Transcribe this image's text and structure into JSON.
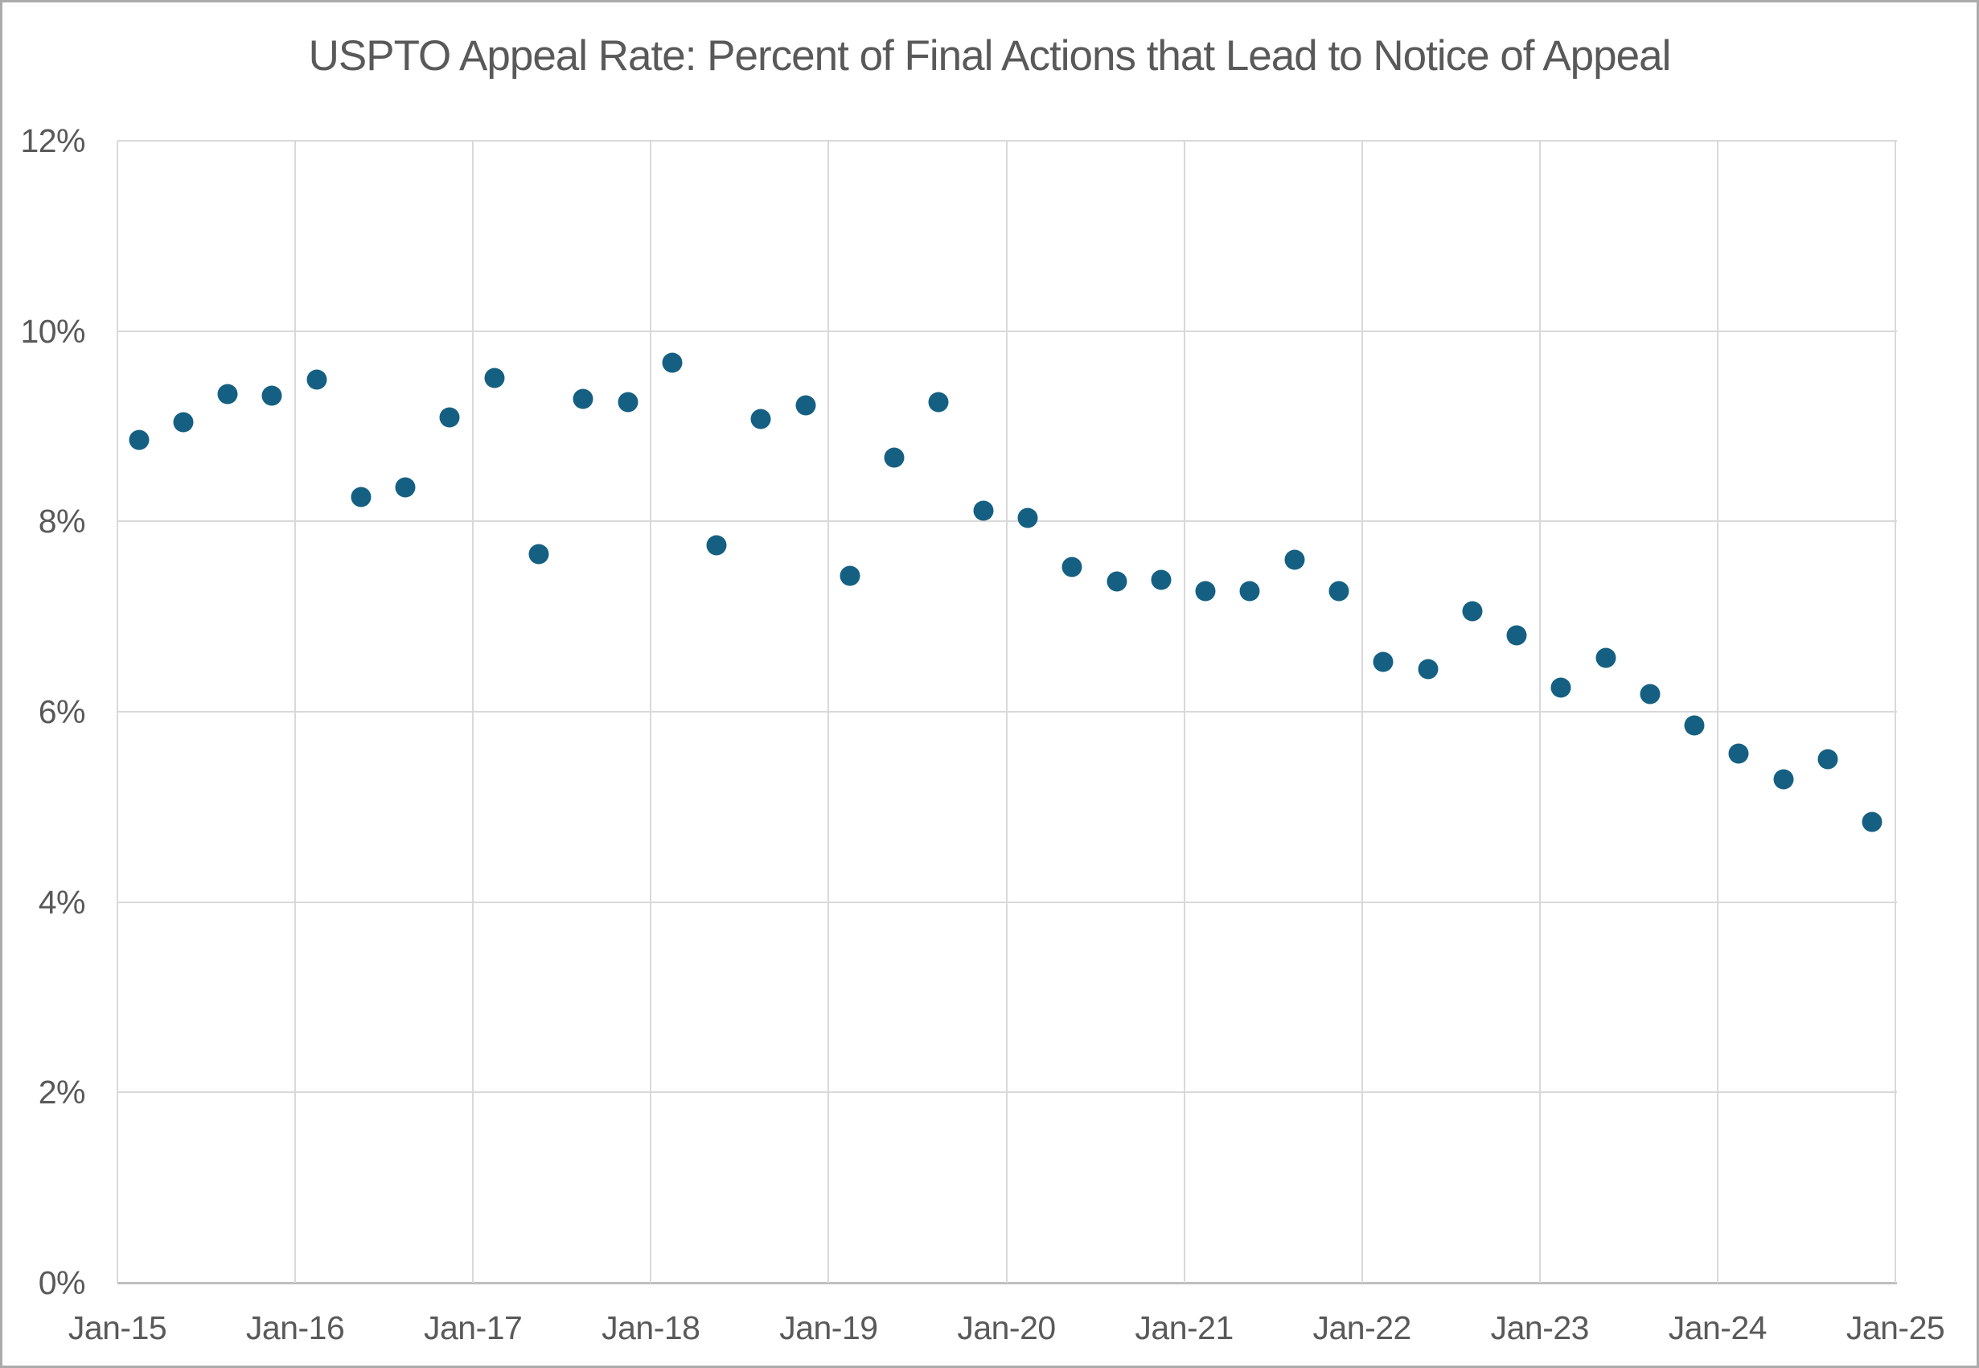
{
  "page": {
    "background_color": "#FFFFFF",
    "border_color": "#ABABAB"
  },
  "chart_data": {
    "type": "scatter",
    "title": "USPTO Appeal Rate: Percent of Final Actions that Lead to Notice of Appeal",
    "title_color": "#595959",
    "tick_label_color": "#595959",
    "marker_color": "#156082",
    "gridline_color": "#D9D9D9",
    "axis_line_color": "#BFBFBF",
    "grid": "both",
    "legend_position": "none",
    "x_axis": {
      "min_year": 2015,
      "max_year": 2025,
      "grid_interval_years": 1,
      "tick_labels": [
        "Jan-15",
        "Jan-16",
        "Jan-17",
        "Jan-18",
        "Jan-19",
        "Jan-20",
        "Jan-21",
        "Jan-22",
        "Jan-23",
        "Jan-24",
        "Jan-25"
      ]
    },
    "y_axis": {
      "min": 0,
      "max": 12,
      "step": 2,
      "format": "percent",
      "tick_labels": [
        "0%",
        "2%",
        "4%",
        "6%",
        "8%",
        "10%",
        "12%"
      ]
    },
    "series_name": "Appeal rate (% of final actions leading to notice of appeal)",
    "points": [
      {
        "label": "2015 Q1",
        "x": 2015.12,
        "y": 8.86
      },
      {
        "label": "2015 Q2",
        "x": 2015.37,
        "y": 9.04
      },
      {
        "label": "2015 Q3",
        "x": 2015.62,
        "y": 9.34
      },
      {
        "label": "2015 Q4",
        "x": 2015.87,
        "y": 9.32
      },
      {
        "label": "2016 Q1",
        "x": 2016.12,
        "y": 9.49
      },
      {
        "label": "2016 Q2",
        "x": 2016.37,
        "y": 8.26
      },
      {
        "label": "2016 Q3",
        "x": 2016.62,
        "y": 8.36
      },
      {
        "label": "2016 Q4",
        "x": 2016.87,
        "y": 9.09
      },
      {
        "label": "2017 Q1",
        "x": 2017.12,
        "y": 9.51
      },
      {
        "label": "2017 Q2",
        "x": 2017.37,
        "y": 7.66
      },
      {
        "label": "2017 Q3",
        "x": 2017.62,
        "y": 9.29
      },
      {
        "label": "2017 Q4",
        "x": 2017.87,
        "y": 9.25
      },
      {
        "label": "2018 Q1",
        "x": 2018.12,
        "y": 9.67
      },
      {
        "label": "2018 Q2",
        "x": 2018.37,
        "y": 7.75
      },
      {
        "label": "2018 Q3",
        "x": 2018.62,
        "y": 9.08
      },
      {
        "label": "2018 Q4",
        "x": 2018.87,
        "y": 9.22
      },
      {
        "label": "2019 Q1",
        "x": 2019.12,
        "y": 7.43
      },
      {
        "label": "2019 Q2",
        "x": 2019.37,
        "y": 8.67
      },
      {
        "label": "2019 Q3",
        "x": 2019.62,
        "y": 9.25
      },
      {
        "label": "2019 Q4",
        "x": 2019.87,
        "y": 8.11
      },
      {
        "label": "2020 Q1",
        "x": 2020.12,
        "y": 8.04
      },
      {
        "label": "2020 Q2",
        "x": 2020.37,
        "y": 7.52
      },
      {
        "label": "2020 Q3",
        "x": 2020.62,
        "y": 7.37
      },
      {
        "label": "2020 Q4",
        "x": 2020.87,
        "y": 7.39
      },
      {
        "label": "2021 Q1",
        "x": 2021.12,
        "y": 7.27
      },
      {
        "label": "2021 Q2",
        "x": 2021.37,
        "y": 7.27
      },
      {
        "label": "2021 Q3",
        "x": 2021.62,
        "y": 7.6
      },
      {
        "label": "2021 Q4",
        "x": 2021.87,
        "y": 7.27
      },
      {
        "label": "2022 Q1",
        "x": 2022.12,
        "y": 6.52
      },
      {
        "label": "2022 Q2",
        "x": 2022.37,
        "y": 6.45
      },
      {
        "label": "2022 Q3",
        "x": 2022.62,
        "y": 7.06
      },
      {
        "label": "2022 Q4",
        "x": 2022.87,
        "y": 6.8
      },
      {
        "label": "2023 Q1",
        "x": 2023.12,
        "y": 6.25
      },
      {
        "label": "2023 Q2",
        "x": 2023.37,
        "y": 6.57
      },
      {
        "label": "2023 Q3",
        "x": 2023.62,
        "y": 6.19
      },
      {
        "label": "2023 Q4",
        "x": 2023.87,
        "y": 5.86
      },
      {
        "label": "2024 Q1",
        "x": 2024.12,
        "y": 5.56
      },
      {
        "label": "2024 Q2",
        "x": 2024.37,
        "y": 5.29
      },
      {
        "label": "2024 Q3",
        "x": 2024.62,
        "y": 5.5
      },
      {
        "label": "2024 Q4",
        "x": 2024.87,
        "y": 4.84
      }
    ]
  }
}
